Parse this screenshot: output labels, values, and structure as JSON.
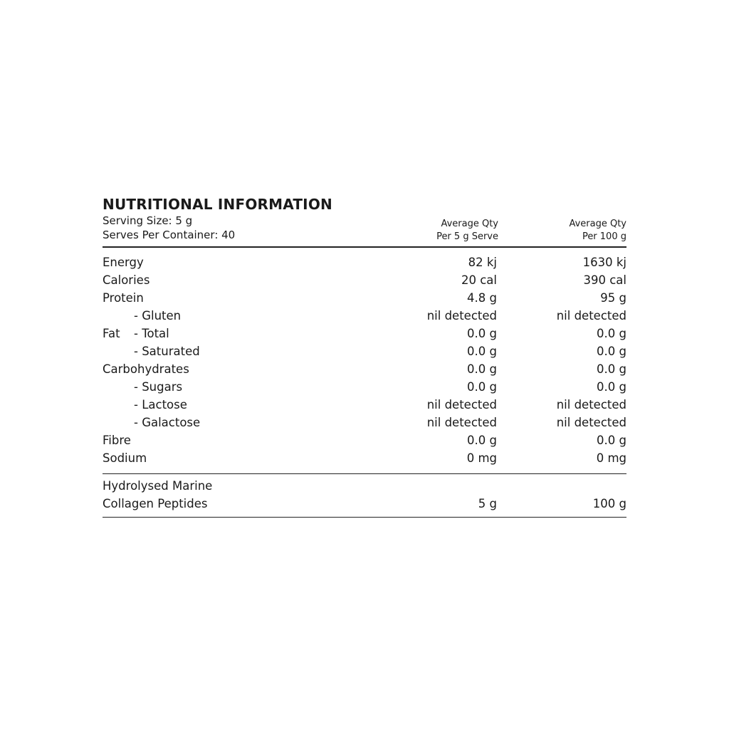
{
  "title": "NUTRITIONAL INFORMATION",
  "serving_size": "Serving Size: 5 g",
  "serves_per_container": "Serves Per Container: 40",
  "columns": [
    {
      "line1": "Average Qty",
      "line2": "Per 5 g Serve"
    },
    {
      "line1": "Average Qty",
      "line2": "Per 100 g"
    }
  ],
  "rows": [
    {
      "label": "Energy",
      "sub": "",
      "per_serve": "82 kj",
      "per_100g": "1630 kj"
    },
    {
      "label": "Calories",
      "sub": "",
      "per_serve": "20 cal",
      "per_100g": "390 cal"
    },
    {
      "label": "Protein",
      "sub": "",
      "per_serve": "4.8 g",
      "per_100g": "95 g"
    },
    {
      "label": "",
      "sub": "- Gluten",
      "per_serve": "nil detected",
      "per_100g": "nil detected"
    },
    {
      "label": "Fat",
      "sub": "- Total",
      "per_serve": "0.0 g",
      "per_100g": "0.0 g"
    },
    {
      "label": "",
      "sub": "- Saturated",
      "per_serve": "0.0 g",
      "per_100g": "0.0 g"
    },
    {
      "label": "Carbohydrates",
      "sub": "",
      "per_serve": "0.0 g",
      "per_100g": "0.0 g"
    },
    {
      "label": "",
      "sub": "- Sugars",
      "per_serve": "0.0 g",
      "per_100g": "0.0 g"
    },
    {
      "label": "",
      "sub": "- Lactose",
      "per_serve": "nil detected",
      "per_100g": "nil detected"
    },
    {
      "label": "",
      "sub": "- Galactose",
      "per_serve": "nil detected",
      "per_100g": "nil detected"
    },
    {
      "label": "Fibre",
      "sub": "",
      "per_serve": "0.0 g",
      "per_100g": "0.0 g"
    },
    {
      "label": "Sodium",
      "sub": "",
      "per_serve": "0 mg",
      "per_100g": "0 mg"
    }
  ],
  "ingredient": {
    "line1": "Hydrolysed Marine",
    "line2": "Collagen Peptides",
    "per_serve": "5 g",
    "per_100g": "100 g"
  }
}
